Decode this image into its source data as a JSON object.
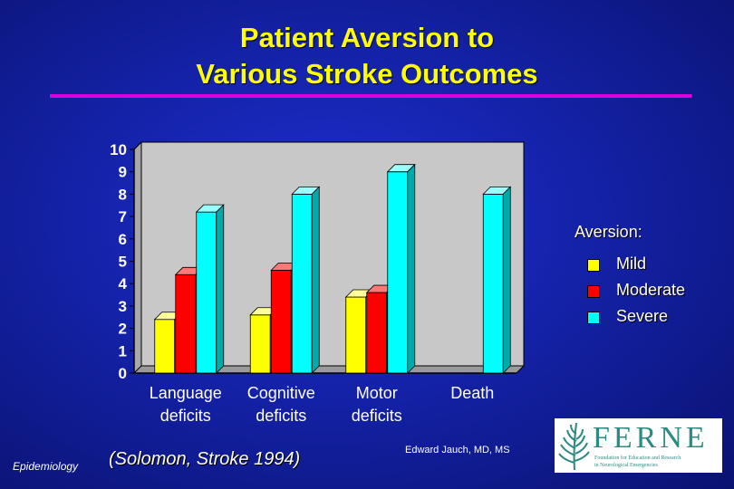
{
  "slide": {
    "title_line1": "Patient Aversion to",
    "title_line2": "Various Stroke Outcomes",
    "footer_left": "Epidemiology",
    "citation": "(Solomon, Stroke 1994)",
    "author": "Edward Jauch, MD, MS",
    "logo": {
      "word": "FERNE",
      "subtitle_line1": "Foundation for Education and Research",
      "subtitle_line2": "in Neurological Emergencies",
      "icon": "fern-leaf-icon"
    }
  },
  "colors": {
    "background": "#1422a8",
    "title": "#ffff00",
    "rule": "#dd00dd",
    "plot_bg": "#c8c8c8",
    "mild": "#ffff00",
    "moderate": "#ff0000",
    "severe": "#00ffff"
  },
  "chart_data": {
    "type": "bar",
    "categories": [
      [
        "Language",
        "deficits"
      ],
      [
        "Cognitive",
        "deficits"
      ],
      [
        "Motor",
        "deficits"
      ],
      [
        "Death",
        ""
      ]
    ],
    "series": [
      {
        "name": "Mild",
        "values": [
          2.4,
          2.6,
          3.4,
          0
        ]
      },
      {
        "name": "Moderate",
        "values": [
          4.4,
          4.6,
          3.6,
          0
        ]
      },
      {
        "name": "Severe",
        "values": [
          7.2,
          8.0,
          9.0,
          8.0
        ]
      }
    ],
    "legend_title": "Aversion:",
    "legend_position": "right",
    "ylim": [
      0,
      10
    ],
    "yticks": [
      0,
      1,
      2,
      3,
      4,
      5,
      6,
      7,
      8,
      9,
      10
    ],
    "grid": false,
    "style": "3d-bar"
  }
}
